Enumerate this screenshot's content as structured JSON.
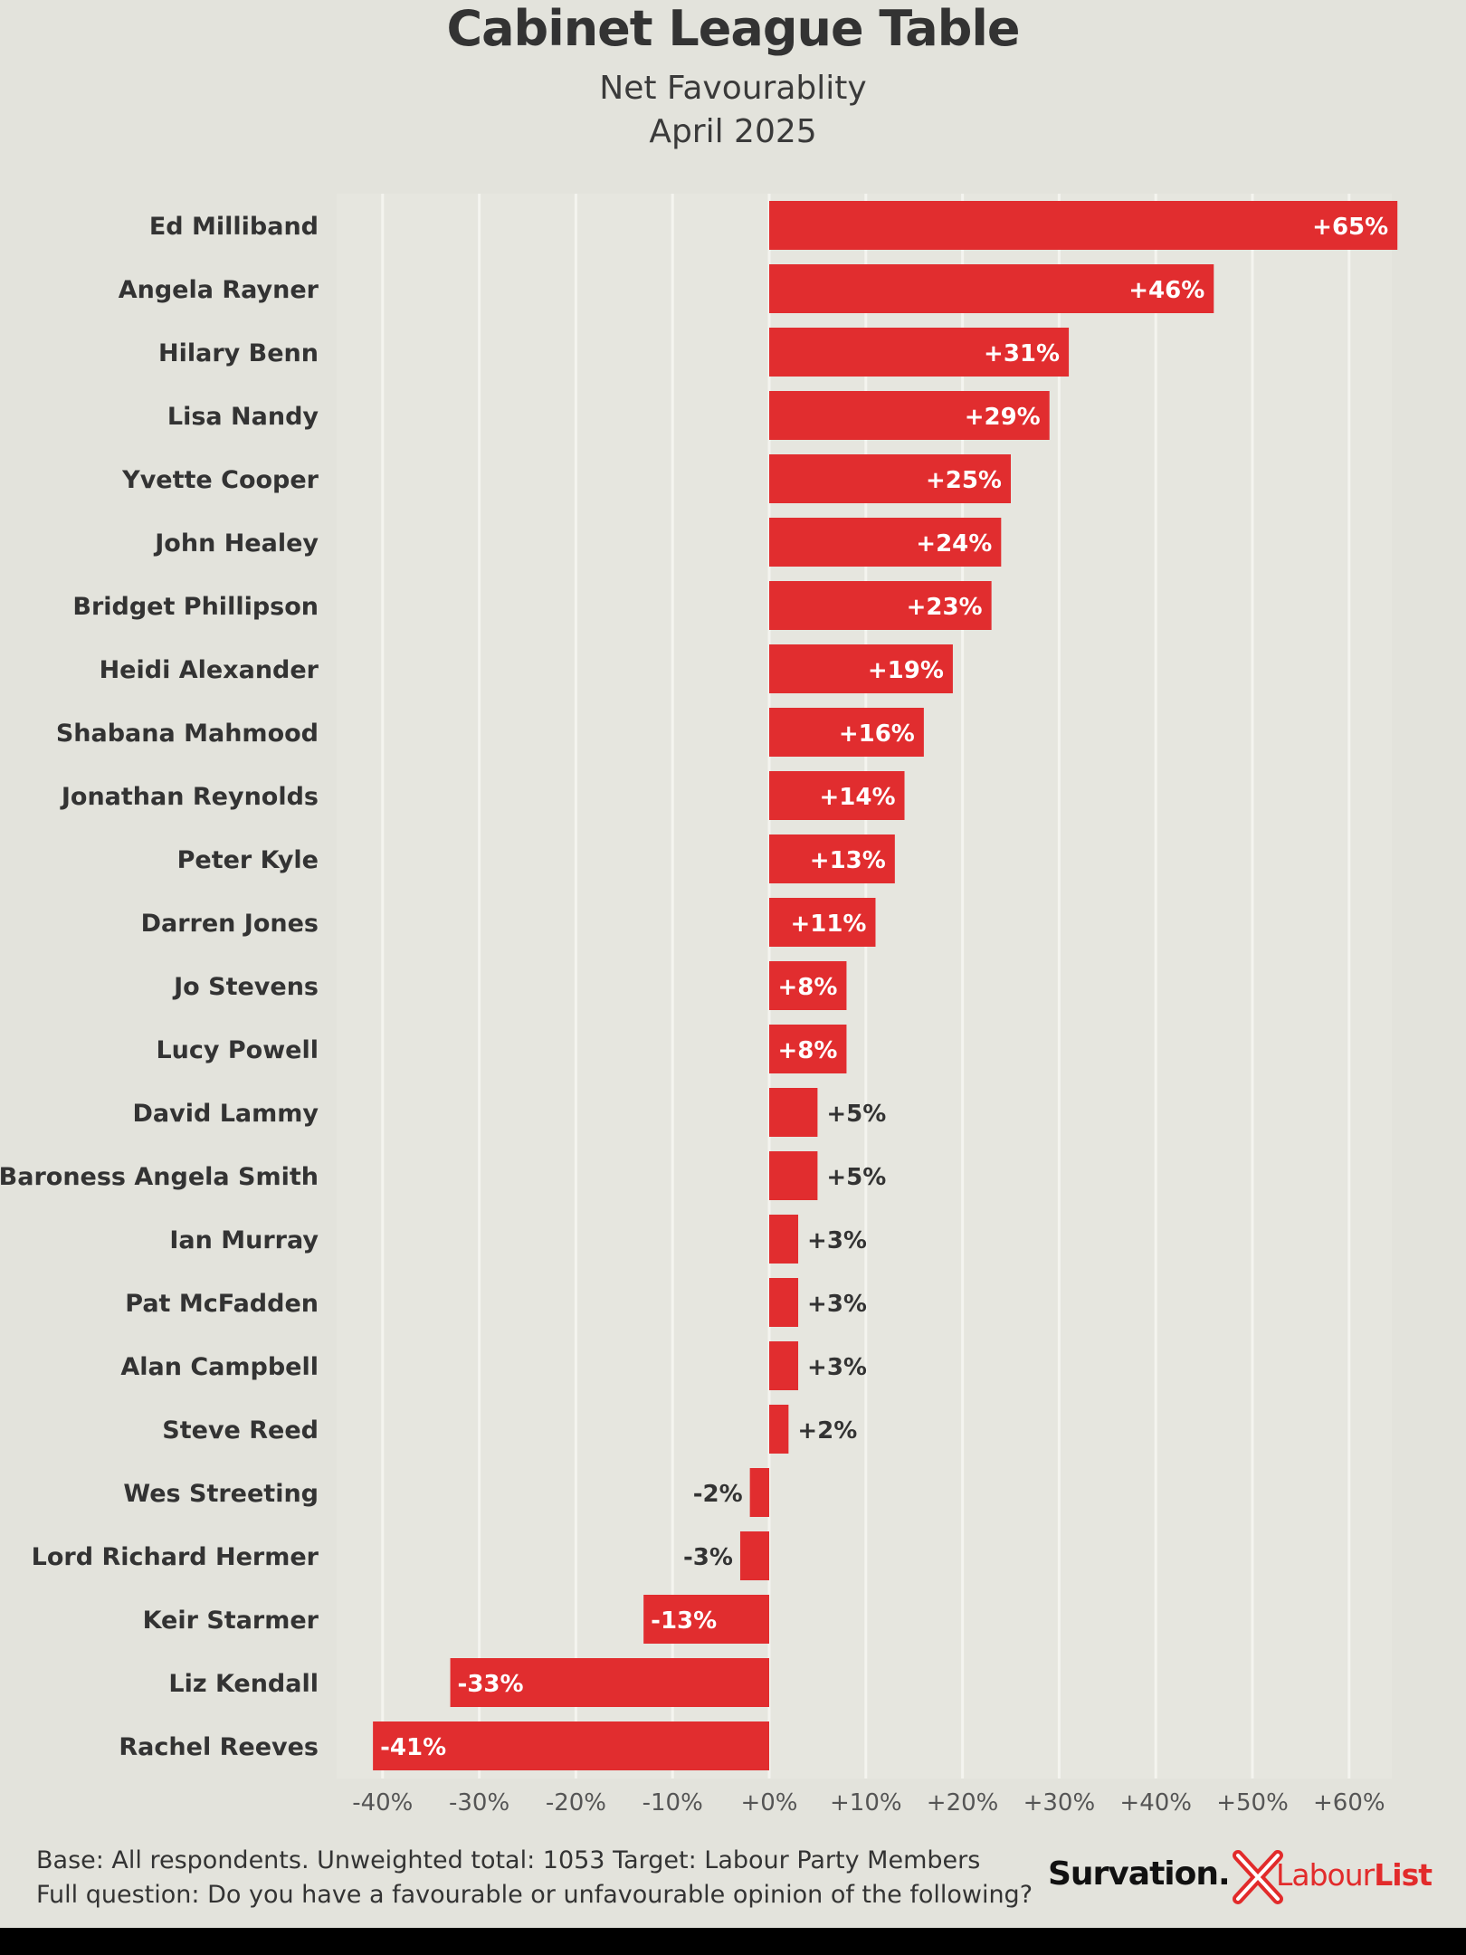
{
  "header": {
    "title": "Cabinet League Table",
    "subtitle_line1": "Net Favourablity",
    "subtitle_line2": "April 2025"
  },
  "footer": {
    "line1": "Base: All respondents. Unweighted total: 1053 Target: Labour Party Members",
    "line2": "Full question: Do you have a favourable or unfavourable opinion of the following?"
  },
  "branding": {
    "survation": "Survation.",
    "labour": "Labour",
    "list": "List",
    "x_icon": "cross-mark-icon"
  },
  "colors": {
    "bar": "#e12d2f",
    "background": "#e3e3dc",
    "grid": "#f4f4ef",
    "accent": "#e22b2b"
  },
  "chart_data": {
    "type": "bar",
    "orientation": "horizontal",
    "categories": [
      "Ed Milliband",
      "Angela Rayner",
      "Hilary Benn",
      "Lisa Nandy",
      "Yvette Cooper",
      "John Healey",
      "Bridget Phillipson",
      "Heidi Alexander",
      "Shabana Mahmood",
      "Jonathan Reynolds",
      "Peter Kyle",
      "Darren Jones",
      "Jo Stevens",
      "Lucy Powell",
      "David Lammy",
      "Baroness Angela Smith",
      "Ian Murray",
      "Pat McFadden",
      "Alan Campbell",
      "Steve Reed",
      "Wes Streeting",
      "Lord Richard Hermer",
      "Keir Starmer",
      "Liz Kendall",
      "Rachel Reeves"
    ],
    "values": [
      65,
      46,
      31,
      29,
      25,
      24,
      23,
      19,
      16,
      14,
      13,
      11,
      8,
      8,
      5,
      5,
      3,
      3,
      3,
      2,
      -2,
      -3,
      -13,
      -33,
      -41
    ],
    "value_labels": [
      "+65%",
      "+46%",
      "+31%",
      "+29%",
      "+25%",
      "+24%",
      "+23%",
      "+19%",
      "+16%",
      "+14%",
      "+13%",
      "+11%",
      "+8%",
      "+8%",
      "+5%",
      "+5%",
      "+3%",
      "+3%",
      "+3%",
      "+2%",
      "-2%",
      "-3%",
      "-13%",
      "-33%",
      "-41%"
    ],
    "xlim": [
      -40,
      65
    ],
    "xticks": [
      -40,
      -30,
      -20,
      -10,
      0,
      10,
      20,
      30,
      40,
      50,
      60
    ],
    "xtick_labels": [
      "-40%",
      "-30%",
      "-20%",
      "-10%",
      "+0%",
      "+10%",
      "+20%",
      "+30%",
      "+40%",
      "+50%",
      "+60%"
    ],
    "grid": true,
    "legend": "none"
  }
}
